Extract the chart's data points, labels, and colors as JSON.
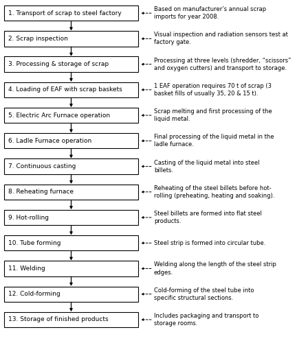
{
  "steps": [
    "1. Transport of scrap to steel factory",
    "2. Scrap inspection",
    "3. Processing & storage of scrap",
    "4. Loading of EAF with scrap baskets",
    "5. Electric Arc Furnace operation",
    "6. Ladle Furnace operation",
    "7. Continuous casting",
    "8. Reheating furnace",
    "9. Hot-rolling",
    "10. Tube forming",
    "11. Welding",
    "12. Cold-forming",
    "13. Storage of finished products"
  ],
  "descriptions": [
    "Based on manufacturer’s annual scrap\nimports for year 2008.",
    "Visual inspection and radiation sensors test at\nfactory gate.",
    "Processing at three levels (shredder, “scissors”\nand oxygen cutters) and transport to storage.",
    "1 EAF operation requires 70 t of scrap (3\nbasket fills of usually 35, 20 & 15 t).",
    "Scrap melting and first processing of the\nliquid metal.",
    "Final processing of the liquid metal in the\nladle furnace.",
    "Casting of the liquid metal into steel\nbillets.",
    "Reheating of the steel billets before hot-\nrolling (preheating, heating and soaking).",
    "Steel billets are formed into flat steel\nproducts.",
    "Steel strip is formed into circular tube.",
    "Welding along the length of the steel strip\nedges.",
    "Cold-forming of the steel tube into\nspecific structural sections.",
    "Includes packaging and transport to\nstorage rooms."
  ],
  "box_color": "#ffffff",
  "box_edge_color": "#000000",
  "arrow_color": "#000000",
  "text_color": "#000000",
  "bg_color": "#ffffff",
  "fig_width": 4.32,
  "fig_height": 5.0,
  "dpi": 100
}
